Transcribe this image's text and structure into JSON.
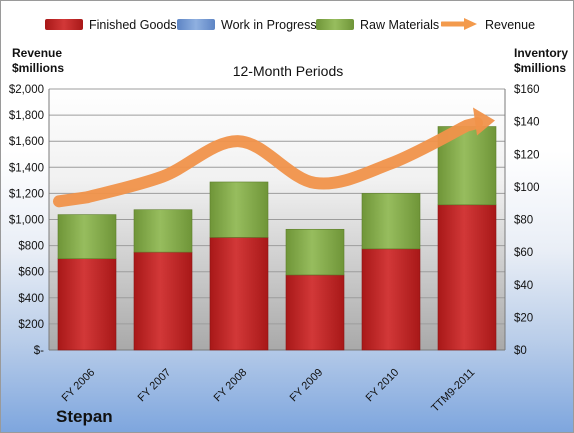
{
  "legend": [
    {
      "label": "Finished Goods",
      "color": "#cc2a2a",
      "kind": "bar"
    },
    {
      "label": "Work in Progress",
      "color": "#7fa1d6",
      "kind": "bar"
    },
    {
      "label": "Raw Materials",
      "color": "#8bb252",
      "kind": "bar"
    },
    {
      "label": "Revenue",
      "color": "#f39a4c",
      "kind": "arrow"
    }
  ],
  "left_axis_title": [
    "Revenue",
    "$millions"
  ],
  "right_axis_title": [
    "Inventory",
    "$millions"
  ],
  "company": "Stepan",
  "chart_data": {
    "type": "bar",
    "title": "12-Month Periods",
    "categories": [
      "FY 2006",
      "FY 2007",
      "FY 2008",
      "FY 2009",
      "FY 2010",
      "TTM9-2011"
    ],
    "stacked": true,
    "series": [
      {
        "name": "Finished Goods",
        "axis": "right",
        "values": [
          56,
          60,
          69,
          46,
          62,
          89
        ],
        "color": "#cc2a2a"
      },
      {
        "name": "Work in Progress",
        "axis": "right",
        "values": [
          0,
          0,
          0,
          0,
          0,
          0
        ],
        "color": "#7fa1d6"
      },
      {
        "name": "Raw Materials",
        "axis": "right",
        "values": [
          27,
          26,
          34,
          28,
          34,
          48
        ],
        "color": "#8bb252"
      },
      {
        "name": "Revenue",
        "axis": "left",
        "type": "line",
        "values": [
          1170,
          1330,
          1600,
          1280,
          1430,
          1720
        ],
        "color": "#f39a4c"
      }
    ],
    "left_axis": {
      "ylim": [
        0,
        2000
      ],
      "ticks": [
        "$-",
        "$200",
        "$400",
        "$600",
        "$800",
        "$1,000",
        "$1,200",
        "$1,400",
        "$1,600",
        "$1,800",
        "$2,000"
      ]
    },
    "right_axis": {
      "ylim": [
        0,
        160
      ],
      "ticks": [
        "$0",
        "$20",
        "$40",
        "$60",
        "$80",
        "$100",
        "$120",
        "$140",
        "$160"
      ]
    },
    "legend_position": "top",
    "grid": true
  }
}
